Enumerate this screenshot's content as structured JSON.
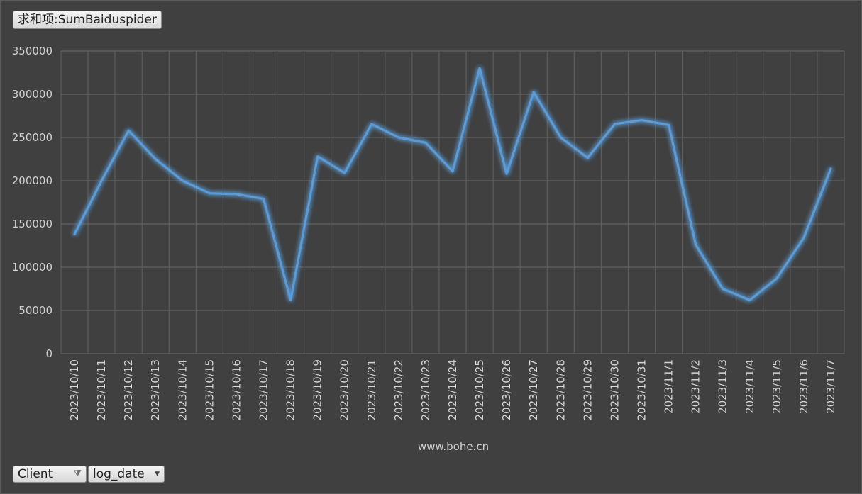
{
  "value_field": {
    "label": "求和项:SumBaiduspider"
  },
  "axis_fields": [
    {
      "label": "Client",
      "icon": "filter-icon"
    },
    {
      "label": "log_date",
      "icon": "dropdown-arrow-icon"
    }
  ],
  "colors": {
    "background": "#404040",
    "line": "#5b9bd5",
    "grid": "#5c5c5c"
  },
  "chart_data": {
    "type": "line",
    "title": "",
    "xlabel": "www.bohe.cn",
    "ylabel": "",
    "ylim": [
      0,
      350000
    ],
    "yticks": [
      0,
      50000,
      100000,
      150000,
      200000,
      250000,
      300000,
      350000
    ],
    "grid": true,
    "categories": [
      "2023/10/10",
      "2023/10/11",
      "2023/10/12",
      "2023/10/13",
      "2023/10/14",
      "2023/10/15",
      "2023/10/16",
      "2023/10/17",
      "2023/10/18",
      "2023/10/19",
      "2023/10/20",
      "2023/10/21",
      "2023/10/22",
      "2023/10/23",
      "2023/10/24",
      "2023/10/25",
      "2023/10/26",
      "2023/10/27",
      "2023/10/28",
      "2023/10/29",
      "2023/10/30",
      "2023/10/31",
      "2023/11/1",
      "2023/11/2",
      "2023/11/3",
      "2023/11/4",
      "2023/11/5",
      "2023/11/6",
      "2023/11/7"
    ],
    "series": [
      {
        "values": [
          138000,
          200000,
          258000,
          225000,
          200000,
          185500,
          184500,
          179000,
          62000,
          228000,
          209000,
          265500,
          250000,
          244000,
          211000,
          330000,
          208000,
          302500,
          250000,
          226500,
          265500,
          270000,
          264500,
          126000,
          75000,
          62000,
          87000,
          134000,
          214000
        ]
      }
    ]
  }
}
